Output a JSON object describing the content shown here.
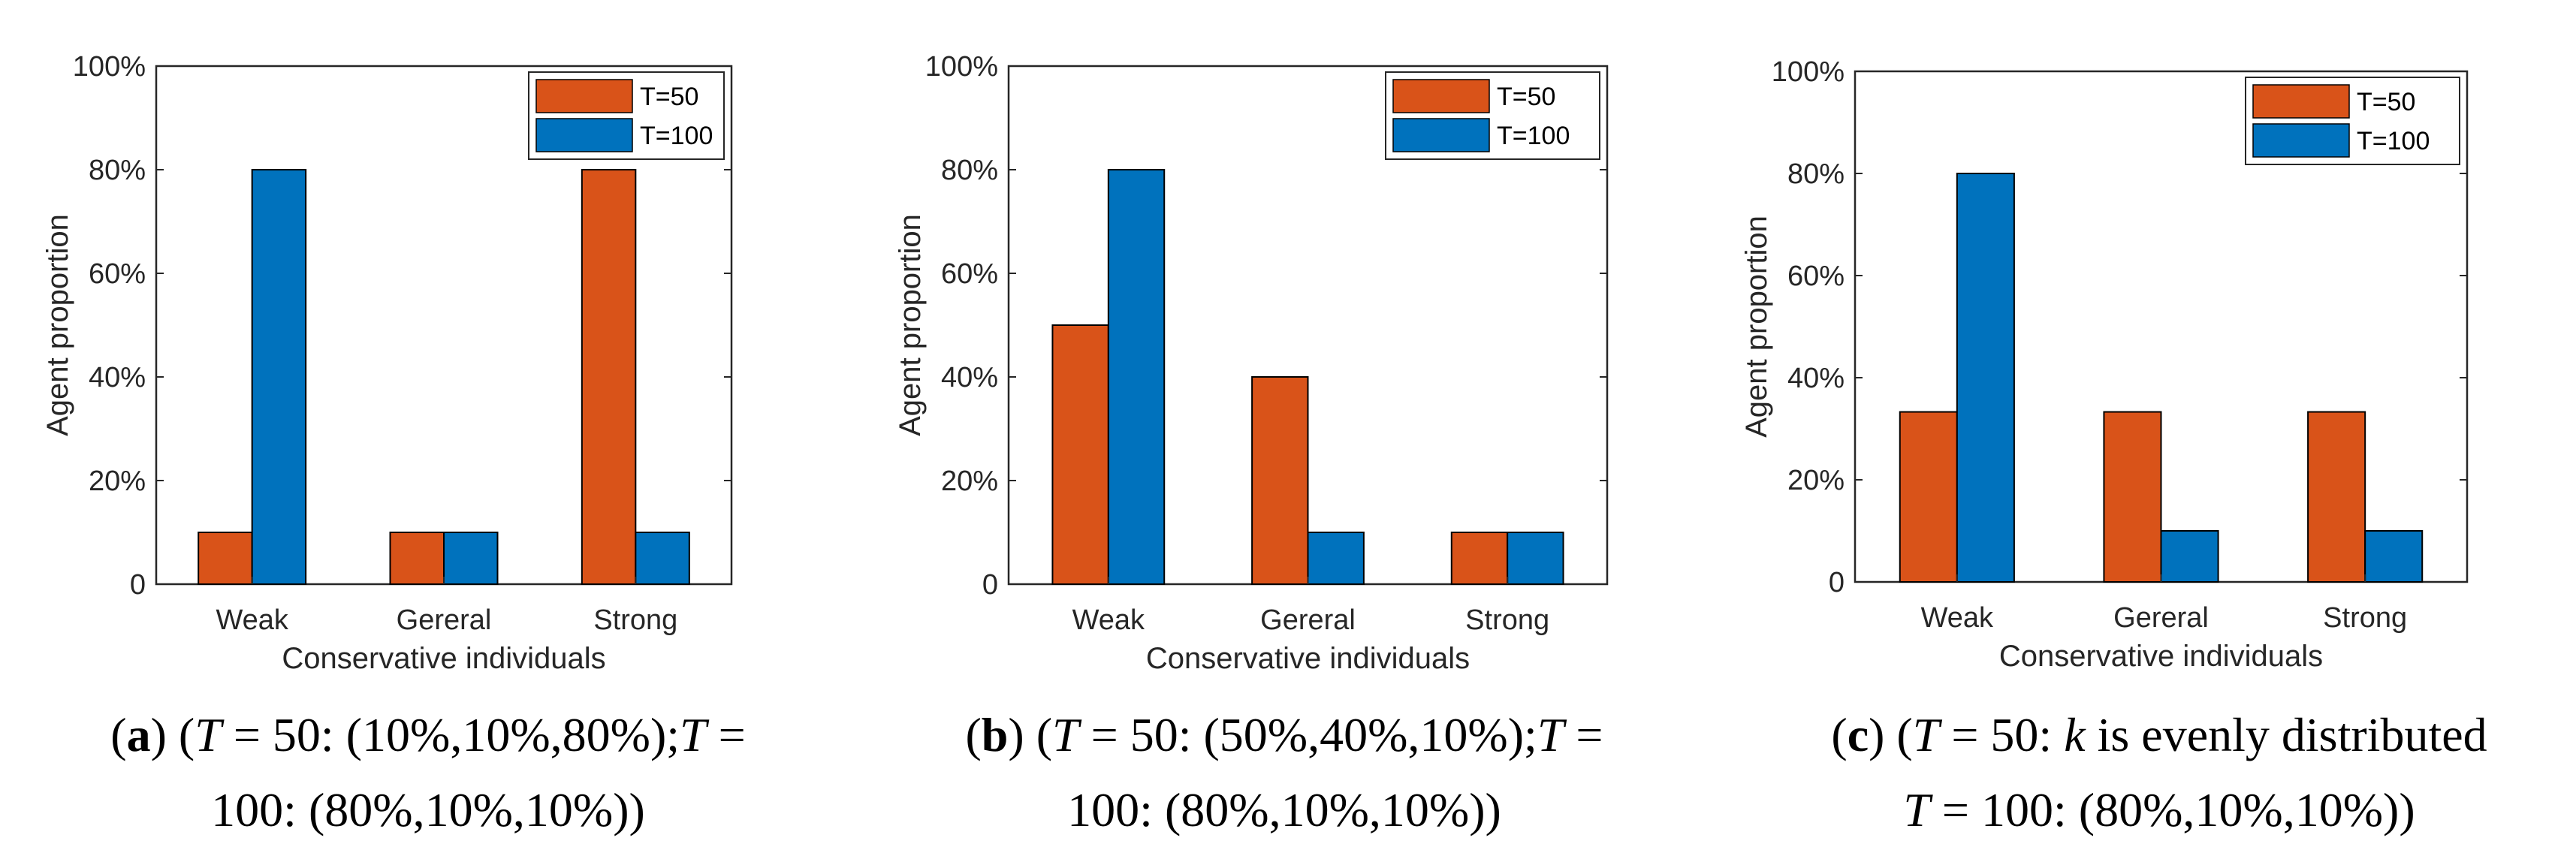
{
  "colors": {
    "t50": "#D95319",
    "t100": "#0072BD"
  },
  "captions": [
    {
      "letter": "a",
      "line1_mid": "50: (10%,10%,80%);",
      "line2": "100: (80%,10%,10%))"
    },
    {
      "letter": "b",
      "line1_mid": "50: (50%,40%,10%);",
      "line2": "100: (80%,10%,10%))"
    },
    {
      "letter": "c",
      "line1_mid": "50: ",
      "k": "k",
      "line1_end": " is evenly distributed",
      "line2": "= 100: (80%,10%,10%))"
    }
  ],
  "chart_data": [
    {
      "type": "bar",
      "categories": [
        "Weak",
        "Gereral",
        "Strong"
      ],
      "series": [
        {
          "name": "T=50",
          "values": [
            10,
            10,
            80
          ]
        },
        {
          "name": "T=100",
          "values": [
            80,
            10,
            10
          ]
        }
      ],
      "xlabel": "Conservative individuals",
      "ylabel": "Agent proportion",
      "ylim": [
        0,
        100
      ],
      "yticks": [
        "0",
        "20%",
        "40%",
        "60%",
        "80%",
        "100%"
      ],
      "legend": "top-right"
    },
    {
      "type": "bar",
      "categories": [
        "Weak",
        "Gereral",
        "Strong"
      ],
      "series": [
        {
          "name": "T=50",
          "values": [
            50,
            40,
            10
          ]
        },
        {
          "name": "T=100",
          "values": [
            80,
            10,
            10
          ]
        }
      ],
      "xlabel": "Conservative individuals",
      "ylabel": "Agent proportion",
      "ylim": [
        0,
        100
      ],
      "yticks": [
        "0",
        "20%",
        "40%",
        "60%",
        "80%",
        "100%"
      ],
      "legend": "top-right"
    },
    {
      "type": "bar",
      "categories": [
        "Weak",
        "Gereral",
        "Strong"
      ],
      "series": [
        {
          "name": "T=50",
          "values": [
            33.3,
            33.3,
            33.3
          ]
        },
        {
          "name": "T=100",
          "values": [
            80,
            10,
            10
          ]
        }
      ],
      "xlabel": "Conservative individuals",
      "ylabel": "Agent proportion",
      "ylim": [
        0,
        100
      ],
      "yticks": [
        "0",
        "20%",
        "40%",
        "60%",
        "80%",
        "100%"
      ],
      "legend": "top-right"
    }
  ]
}
